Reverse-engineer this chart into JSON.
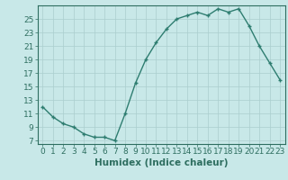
{
  "x": [
    0,
    1,
    2,
    3,
    4,
    5,
    6,
    7,
    8,
    9,
    10,
    11,
    12,
    13,
    14,
    15,
    16,
    17,
    18,
    19,
    20,
    21,
    22,
    23
  ],
  "y": [
    12,
    10.5,
    9.5,
    9,
    8,
    7.5,
    7.5,
    7,
    11,
    15.5,
    19,
    21.5,
    23.5,
    25,
    25.5,
    26,
    25.5,
    26.5,
    26,
    26.5,
    24,
    21,
    18.5,
    16
  ],
  "line_color": "#2e7d70",
  "marker": "+",
  "marker_color": "#2e7d70",
  "background_color": "#c8e8e8",
  "grid_color": "#aacece",
  "xlabel": "Humidex (Indice chaleur)",
  "xlim": [
    -0.5,
    23.5
  ],
  "ylim": [
    6.5,
    27
  ],
  "yticks": [
    7,
    9,
    11,
    13,
    15,
    17,
    19,
    21,
    23,
    25
  ],
  "xticks": [
    0,
    1,
    2,
    3,
    4,
    5,
    6,
    7,
    8,
    9,
    10,
    11,
    12,
    13,
    14,
    15,
    16,
    17,
    18,
    19,
    20,
    21,
    22,
    23
  ],
  "tick_color": "#2e6e60",
  "label_fontsize": 7.5,
  "tick_fontsize": 6.5
}
